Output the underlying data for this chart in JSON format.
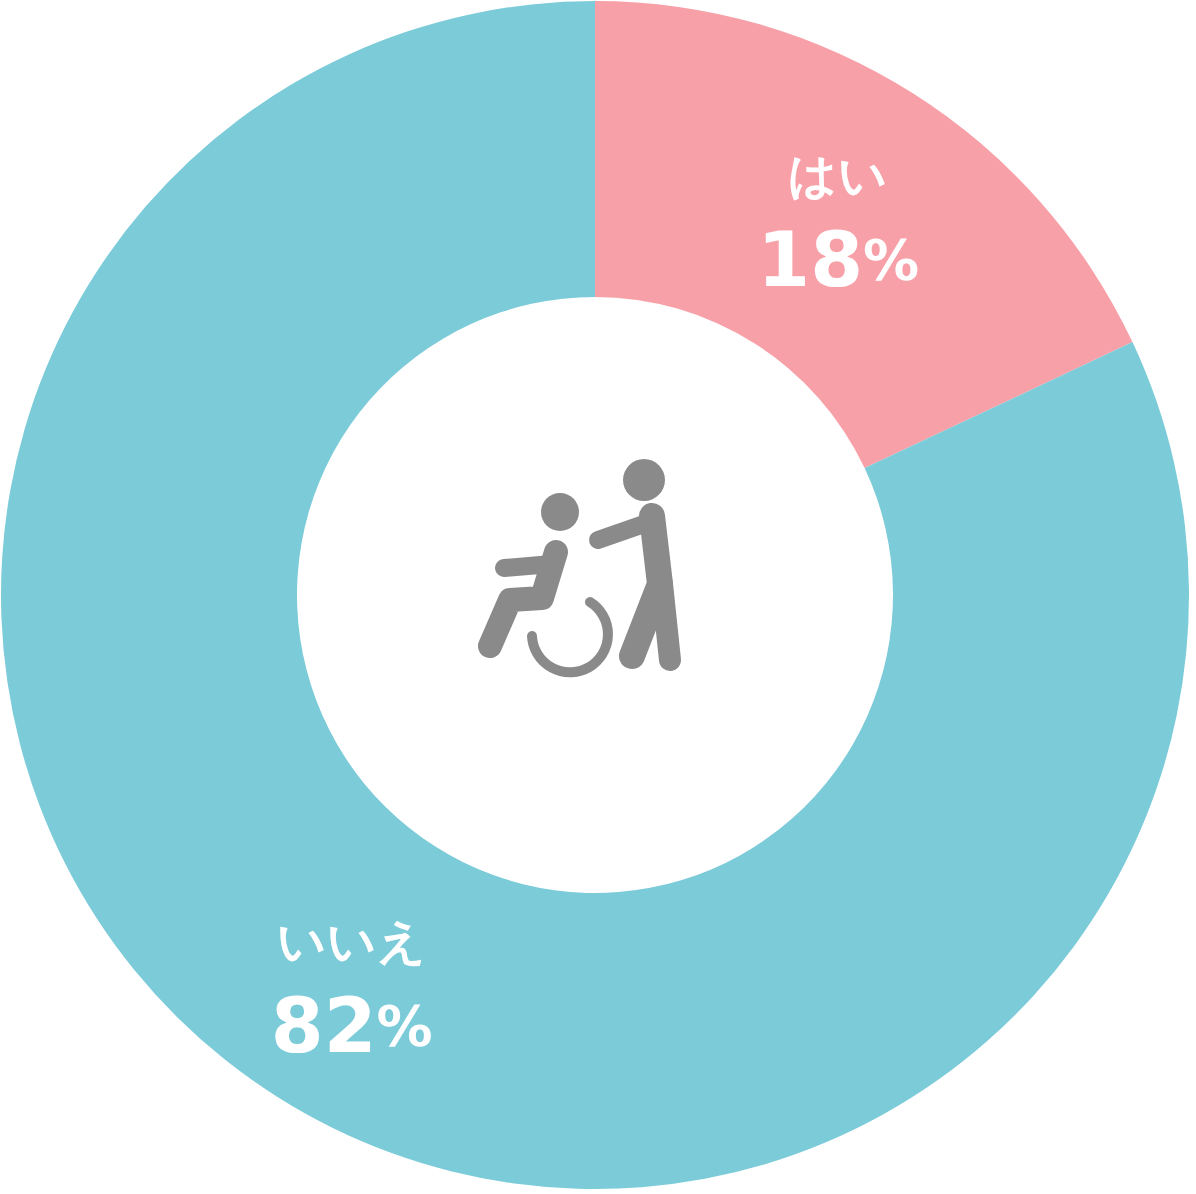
{
  "chart_data": {
    "type": "donut",
    "categories": [
      "はい",
      "いいえ"
    ],
    "values": [
      18,
      82
    ],
    "colors": [
      "#f7a0a8",
      "#7bcbd9"
    ],
    "value_labels": [
      "18%",
      "82%"
    ]
  }
}
